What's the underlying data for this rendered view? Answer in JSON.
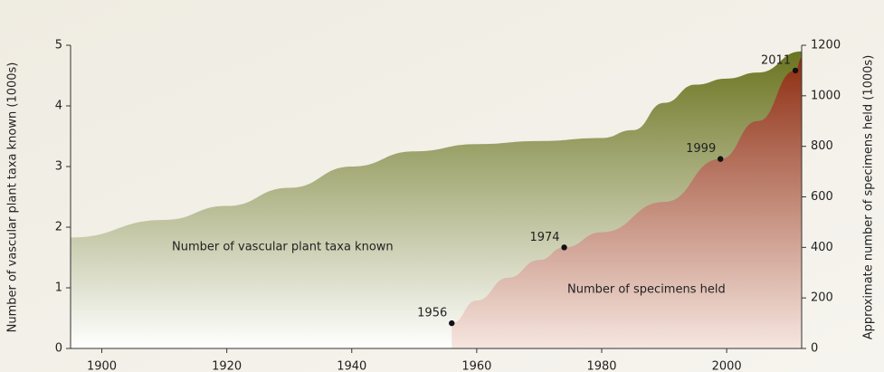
{
  "chart_data": {
    "type": "area",
    "y_label": "Number of vascular plant taxa known (1000s)",
    "y2_label": "Approximate number of specimens held (1000s)",
    "xlim": [
      1895,
      2012
    ],
    "xticks": [
      1900,
      1920,
      1940,
      1960,
      1980,
      2000
    ],
    "ylim": [
      0,
      5
    ],
    "yticks": [
      0,
      1,
      2,
      3,
      4,
      5
    ],
    "y2lim": [
      0,
      1200
    ],
    "y2ticks": [
      0,
      200,
      400,
      600,
      800,
      1000,
      1200
    ],
    "series": [
      {
        "name": "Number of vascular plant taxa known",
        "color": "#6b7420",
        "axis": "y",
        "x": [
          1895,
          1910,
          1920,
          1930,
          1940,
          1950,
          1960,
          1970,
          1980,
          1985,
          1990,
          1995,
          2000,
          2005,
          2012
        ],
        "values": [
          1.83,
          2.12,
          2.35,
          2.65,
          3.0,
          3.25,
          3.37,
          3.42,
          3.47,
          3.6,
          4.05,
          4.35,
          4.45,
          4.55,
          4.9
        ]
      },
      {
        "name": "Number of specimens held",
        "color": "#8e2e12",
        "axis": "y2",
        "x": [
          1956,
          1960,
          1965,
          1970,
          1974,
          1980,
          1990,
          1999,
          2005,
          2011,
          2012
        ],
        "values": [
          100,
          190,
          280,
          350,
          400,
          460,
          580,
          750,
          900,
          1100,
          1150
        ]
      }
    ],
    "points": {
      "x": [
        1956,
        1974,
        1999,
        2011
      ],
      "values": [
        100,
        400,
        750,
        1100
      ],
      "axis": "y2"
    }
  }
}
